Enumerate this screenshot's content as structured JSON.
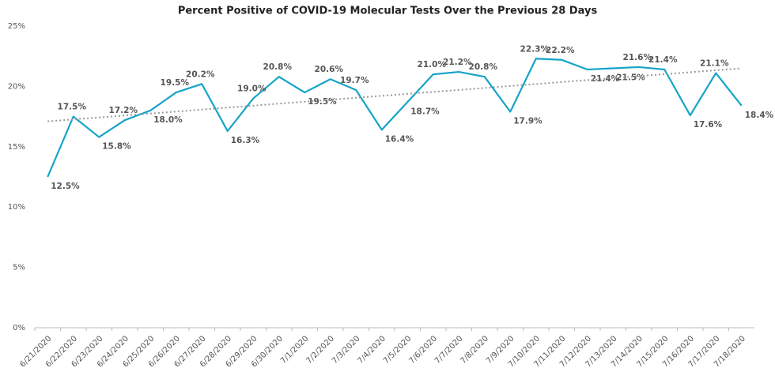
{
  "chart_data": {
    "type": "line",
    "title": "Percent Positive of COVID-19 Molecular Tests Over the Previous 28 Days",
    "categories": [
      "6/21/2020",
      "6/22/2020",
      "6/23/2020",
      "6/24/2020",
      "6/25/2020",
      "6/26/2020",
      "6/27/2020",
      "6/28/2020",
      "6/29/2020",
      "6/30/2020",
      "7/1/2020",
      "7/2/2020",
      "7/3/2020",
      "7/4/2020",
      "7/5/2020",
      "7/6/2020",
      "7/7/2020",
      "7/8/2020",
      "7/9/2020",
      "7/10/2020",
      "7/11/2020",
      "7/12/2020",
      "7/13/2020",
      "7/14/2020",
      "7/15/2020",
      "7/16/2020",
      "7/17/2020",
      "7/18/2020"
    ],
    "series": [
      {
        "color": "#16a4c8",
        "values": [
          12.5,
          17.5,
          15.8,
          17.2,
          18.0,
          19.5,
          20.2,
          16.3,
          19.0,
          20.8,
          19.5,
          20.6,
          19.7,
          16.4,
          18.7,
          21.0,
          21.2,
          20.8,
          17.9,
          22.3,
          22.2,
          21.4,
          21.5,
          21.6,
          21.4,
          17.6,
          21.1,
          18.4
        ],
        "value_labels": [
          "12.5%",
          "17.5%",
          "15.8%",
          "17.2%",
          "18.0%",
          "19.5%",
          "20.2%",
          "16.3%",
          "19.0%",
          "20.8%",
          "19.5%",
          "20.6%",
          "19.7%",
          "16.4%",
          "18.7%",
          "21.0%",
          "21.2%",
          "20.8%",
          "17.9%",
          "22.3%",
          "22.2%",
          "21.4%",
          "21.5%",
          "21.6%",
          "21.4%",
          "17.6%",
          "21.1%",
          "18.4%"
        ]
      }
    ],
    "trendline": {
      "color": "#999999",
      "values": [
        17.1,
        21.5
      ]
    },
    "ylim": [
      0,
      25
    ],
    "yticks": [
      {
        "value": 0,
        "label": "0%"
      },
      {
        "value": 5,
        "label": "5%"
      },
      {
        "value": 10,
        "label": "10%"
      },
      {
        "value": 15,
        "label": "15%"
      },
      {
        "value": 20,
        "label": "20%"
      },
      {
        "value": 25,
        "label": "25%"
      }
    ]
  }
}
